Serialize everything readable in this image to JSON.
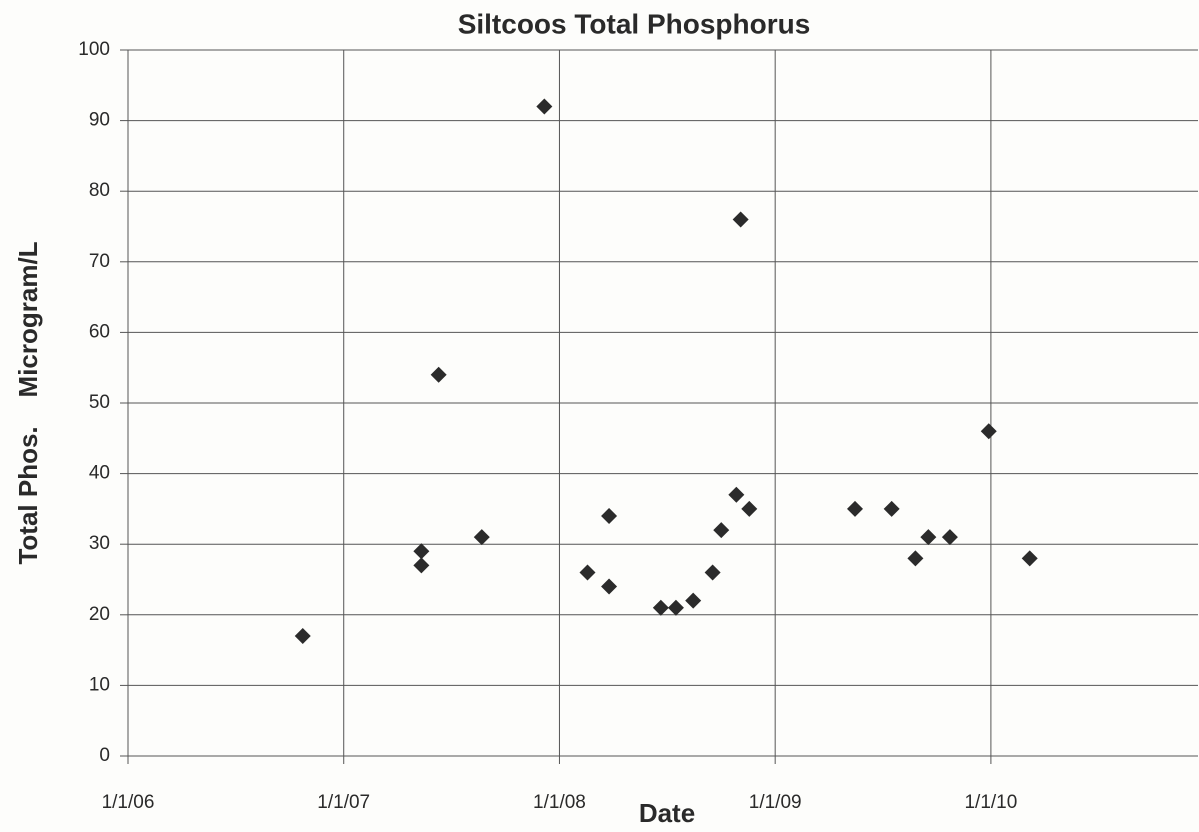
{
  "chart_data": {
    "type": "scatter",
    "title": "Siltcoos Total Phosphorus",
    "x_label": "Date",
    "y_label": "Total Phos.    Microgram/L",
    "series": [
      {
        "color": "#2b2b2b",
        "x": [
          2006.81,
          2007.36,
          2007.36,
          2007.44,
          2007.64,
          2007.93,
          2008.13,
          2008.23,
          2008.23,
          2008.47,
          2008.54,
          2008.62,
          2008.71,
          2008.75,
          2008.82,
          2008.84,
          2008.88,
          2009.37,
          2009.54,
          2009.65,
          2009.71,
          2009.81,
          2009.99,
          2010.18
        ],
        "values": [
          17,
          29,
          27,
          54,
          31,
          92,
          26,
          34,
          24,
          21,
          21,
          22,
          26,
          32,
          37,
          76,
          35,
          35,
          35,
          28,
          31,
          31,
          46,
          28
        ]
      }
    ],
    "xlim": [
      2006,
      2010.96
    ],
    "xticks": [
      {
        "value": 2006,
        "label": "1/1/06"
      },
      {
        "value": 2007,
        "label": "1/1/07"
      },
      {
        "value": 2008,
        "label": "1/1/08"
      },
      {
        "value": 2009,
        "label": "1/1/09"
      },
      {
        "value": 2010,
        "label": "1/1/10"
      }
    ],
    "ylim": [
      0,
      100
    ],
    "yticks": [
      0,
      10,
      20,
      30,
      40,
      50,
      60,
      70,
      80,
      90,
      100
    ],
    "grid": true
  }
}
